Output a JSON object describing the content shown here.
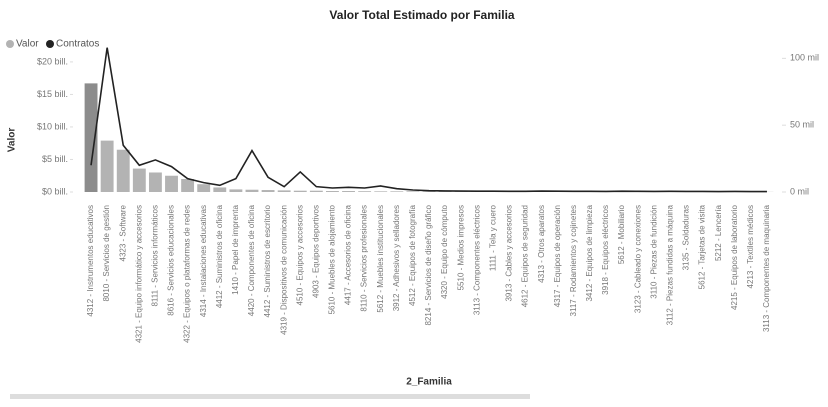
{
  "chart_data": {
    "type": "combo",
    "title": "Valor Total Estimado por Familia",
    "x_label": "2_Familia",
    "y_label": "Valor",
    "categories": [
      "4312 - Instrumentos educativos",
      "8010 - Servicios de gestión",
      "4323 - Software",
      "4321 - Equipo informático y accesorios",
      "8111 - Servicios informáticos",
      "8616 - Servicios educacionales",
      "4322 - Equipos o plataformas de redes",
      "4314 - Instalaciones educativas",
      "4412 - Suministros de oficina",
      "1410 - Papel de imprenta",
      "4420 - Componentes de oficina",
      "4412 - Suministros de escritorio",
      "4319 - Dispositivos de comunicación",
      "4510 - Equipos y accesorios",
      "4903 - Equipos deportivos",
      "5610 - Muebles de alojamiento",
      "4417 - Accesorios de oficina",
      "8110 - Servicios profesionales",
      "5612 - Muebles institucionales",
      "3912 - Adhesivos y selladores",
      "4512 - Equipos de fotografía",
      "8214 - Servicios de diseño gráfico",
      "4320 - Equipo de cómputo",
      "5510 - Medios impresos",
      "3113 - Componentes eléctricos",
      "1111 - Tela y cuero",
      "3913 - Cables y accesorios",
      "4612 - Equipos de seguridad",
      "4313 - Otros aparatos",
      "4317 - Equipos de operación",
      "3117 - Rodamientos y cojinetes",
      "3412 - Equipos de limpieza",
      "3918 - Equipos eléctricos",
      "5612 - Mobiliario",
      "3123 - Cableado y conexiones",
      "3110 - Piezas de fundición",
      "3112 - Piezas fundidas a máquina",
      "3135 - Soldaduras",
      "5612 - Tarjetas de visita",
      "5212 - Lencería",
      "4215 - Equipos de laboratorio",
      "4213 - Textiles médicos",
      "3113 - Componentes de maquinaria"
    ],
    "series": [
      {
        "name": "Valor",
        "color": "#b3b3b3",
        "values": [
          16.7,
          7.9,
          6.5,
          3.6,
          3.0,
          2.5,
          2.0,
          1.2,
          0.7,
          0.4,
          0.35,
          0.3,
          0.25,
          0.2,
          0.2,
          0.15,
          0.15,
          0.12,
          0.1,
          0.1,
          0.1,
          0.08,
          0.08,
          0.07,
          0.07,
          0.06,
          0.06,
          0.05,
          0.05,
          0.05,
          0.04,
          0.04,
          0.04,
          0.04,
          0.03,
          0.03,
          0.03,
          0.03,
          0.03,
          0.02,
          0.02,
          0.02,
          0.02
        ]
      },
      {
        "name": "Contratos",
        "color": "#222222",
        "axis": "y2",
        "values": [
          20000,
          108000,
          35000,
          20000,
          24000,
          19000,
          10000,
          7000,
          5000,
          10000,
          31000,
          11000,
          4000,
          15000,
          4000,
          3000,
          3500,
          3000,
          4500,
          2500,
          1500,
          1000,
          800,
          700,
          600,
          600,
          500,
          500,
          700,
          600,
          500,
          500,
          400,
          600,
          500,
          400,
          500,
          400,
          400,
          300,
          400,
          300,
          300
        ]
      }
    ],
    "ylim": [
      0,
      22.6
    ],
    "yticks": [
      {
        "value": 0,
        "label": "$0 bill."
      },
      {
        "value": 5,
        "label": "$5 bill."
      },
      {
        "value": 10,
        "label": "$10 bill."
      },
      {
        "value": 15,
        "label": "$15 bill."
      },
      {
        "value": 20,
        "label": "$20 bill."
      }
    ],
    "y2lim": [
      0,
      110000
    ],
    "y2ticks": [
      {
        "value": 0,
        "label": "0 mil"
      },
      {
        "value": 50000,
        "label": "50 mil"
      },
      {
        "value": 100000,
        "label": "100 mil"
      }
    ]
  }
}
